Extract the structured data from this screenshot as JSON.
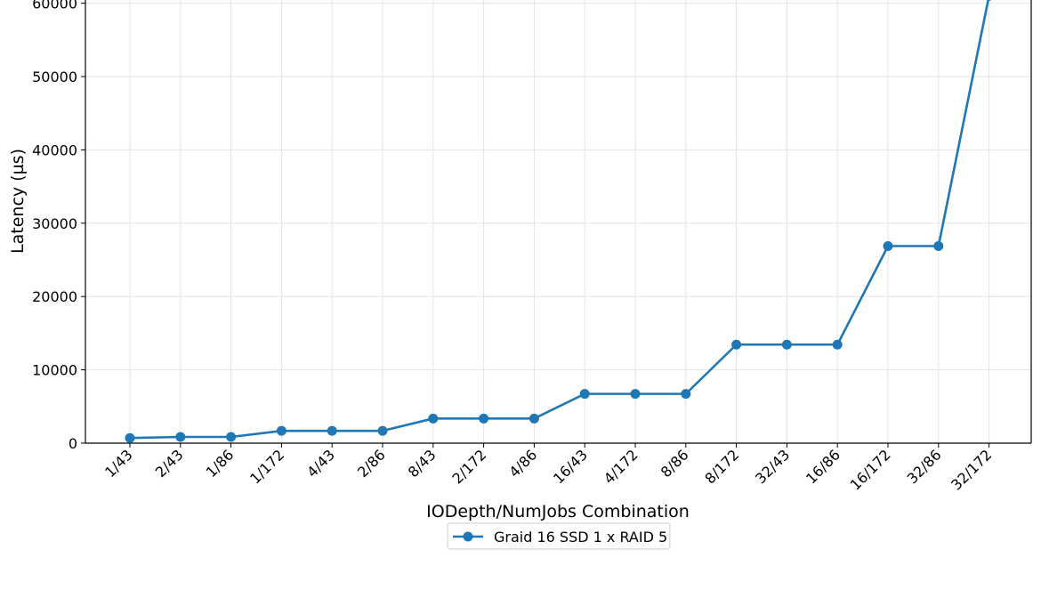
{
  "chart_data": {
    "type": "line",
    "title": "",
    "xlabel": "IODepth/NumJobs Combination",
    "ylabel": "Latency (µs)",
    "categories": [
      "1/43",
      "2/43",
      "1/86",
      "1/172",
      "4/43",
      "2/86",
      "8/43",
      "2/172",
      "4/86",
      "16/43",
      "4/172",
      "8/86",
      "8/172",
      "32/43",
      "16/86",
      "16/172",
      "32/86",
      "32/172"
    ],
    "series": [
      {
        "name": "Graid 16 SSD 1 x RAID 5",
        "color": "#1f77b4",
        "marker": "circle",
        "values": [
          700,
          850,
          850,
          1680,
          1680,
          1680,
          3360,
          3360,
          3360,
          6720,
          6720,
          6720,
          13440,
          13440,
          13440,
          26880,
          26880,
          61000
        ]
      }
    ],
    "yticks": [
      0,
      10000,
      20000,
      30000,
      40000,
      50000,
      60000
    ],
    "ylim": [
      0,
      60000
    ],
    "grid": true,
    "legend_position": "bottom-center"
  }
}
